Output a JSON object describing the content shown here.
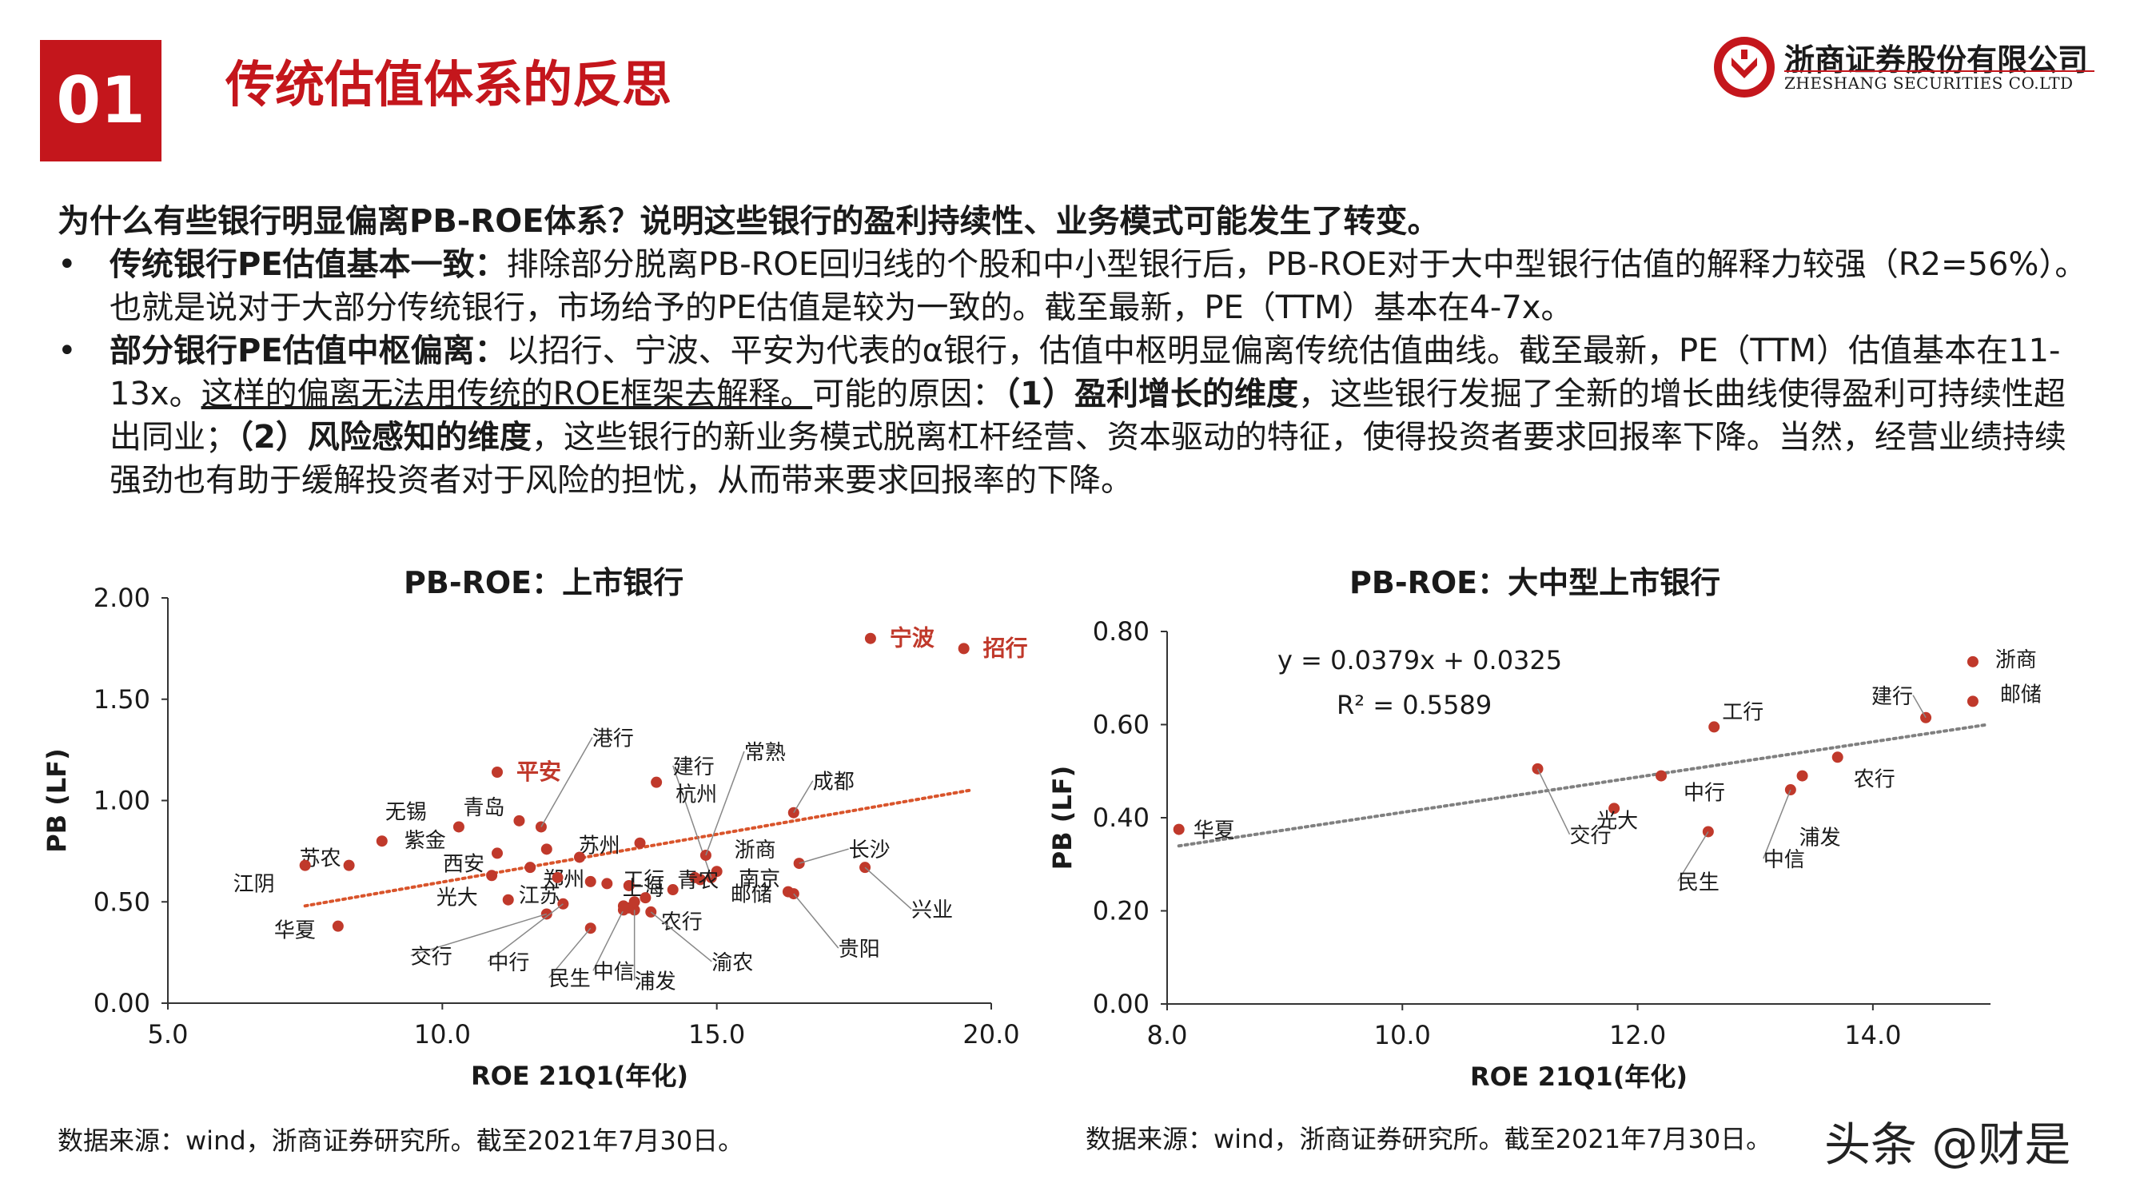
{
  "header": {
    "section_number": "01",
    "title": "传统估值体系的反思",
    "company_cn": "浙商证券股份有限公司",
    "company_en": "ZHESHANG SECURITIES CO.LTD",
    "brand_color": "#c4161c"
  },
  "body": {
    "question": "为什么有些银行明显偏离PB-ROE体系？说明这些银行的盈利持续性、业务模式可能发生了转变。",
    "bullet1_bold": "传统银行PE估值基本一致：",
    "bullet1_text": "排除部分脱离PB-ROE回归线的个股和中小型银行后，PB-ROE对于大中型银行估值的解释力较强（R2=56%）。也就是说对于大部分传统银行，市场给予的PE估值是较为一致的。截至最新，PE（TTM）基本在4-7x。",
    "bullet2_bold": "部分银行PE估值中枢偏离：",
    "bullet2_text1": "以招行、宁波、平安为代表的α银行，估值中枢明显偏离传统估值曲线。截至最新，PE（TTM）估值基本在11-13x。",
    "bullet2_underline": "这样的偏离无法用传统的ROE框架去解释。",
    "bullet2_text2": "可能的原因：",
    "bullet2_bold2": "（1）盈利增长的维度",
    "bullet2_text3": "，这些银行发掘了全新的增长曲线使得盈利可持续性超出同业；",
    "bullet2_bold3": "（2）风险感知的维度",
    "bullet2_text4": "，这些银行的新业务模式脱离杠杆经营、资本驱动的特征，使得投资者要求回报率下降。当然，经营业绩持续强劲也有助于缓解投资者对于风险的担忧，从而带来要求回报率的下降。"
  },
  "charts": {
    "left_source": "数据来源：wind，浙商证券研究所。截至2021年7月30日。",
    "right_source": "数据来源：wind，浙商证券研究所。截至2021年7月30日。"
  },
  "watermark": "头条 @财是",
  "chart_data": [
    {
      "type": "scatter",
      "title": "PB-ROE：上市银行",
      "xlabel": "ROE 21Q1(年化)",
      "ylabel": "PB (LF)",
      "xlim": [
        5.0,
        20.0
      ],
      "ylim": [
        0.0,
        2.0
      ],
      "xticks": [
        "5.0",
        "10.0",
        "15.0",
        "20.0"
      ],
      "yticks": [
        "0.00",
        "0.50",
        "1.00",
        "1.50",
        "2.00"
      ],
      "grid": false,
      "trendline": {
        "style": "dotted",
        "color": "#d9542b",
        "from": [
          7.5,
          0.48
        ],
        "to": [
          19.6,
          1.05
        ]
      },
      "point_color": "#c0392b",
      "highlight_color": "#c0392b",
      "points": [
        {
          "label": "宁波",
          "x": 17.8,
          "y": 1.8,
          "highlight": true
        },
        {
          "label": "招行",
          "x": 19.5,
          "y": 1.75,
          "highlight": true
        },
        {
          "label": "平安",
          "x": 11.0,
          "y": 1.14,
          "highlight": true
        },
        {
          "label": "港行",
          "x": 11.8,
          "y": 0.87
        },
        {
          "label": "建行",
          "x": 14.9,
          "y": 0.62
        },
        {
          "label": "常熟",
          "x": 14.8,
          "y": 0.73
        },
        {
          "label": "杭州",
          "x": 13.9,
          "y": 1.09
        },
        {
          "label": "成都",
          "x": 16.4,
          "y": 0.94
        },
        {
          "label": "长沙",
          "x": 16.5,
          "y": 0.69
        },
        {
          "label": "无锡",
          "x": 10.3,
          "y": 0.87
        },
        {
          "label": "青岛",
          "x": 11.4,
          "y": 0.9
        },
        {
          "label": "苏州",
          "x": 11.9,
          "y": 0.76
        },
        {
          "label": "苏农",
          "x": 8.3,
          "y": 0.68
        },
        {
          "label": "紫金",
          "x": 8.9,
          "y": 0.8
        },
        {
          "label": "江阴",
          "x": 7.5,
          "y": 0.68
        },
        {
          "label": "西安",
          "x": 11.0,
          "y": 0.74
        },
        {
          "label": "郑州",
          "x": 11.6,
          "y": 0.67
        },
        {
          "label": "浙商",
          "x": 15.0,
          "y": 0.65
        },
        {
          "label": "南京",
          "x": 14.7,
          "y": 0.61
        },
        {
          "label": "工行",
          "x": 13.0,
          "y": 0.59
        },
        {
          "label": "上海",
          "x": 13.4,
          "y": 0.58
        },
        {
          "label": "青农",
          "x": 14.6,
          "y": 0.62
        },
        {
          "label": "光大",
          "x": 11.2,
          "y": 0.51
        },
        {
          "label": "江苏",
          "x": 12.7,
          "y": 0.6
        },
        {
          "label": "邮储",
          "x": 16.3,
          "y": 0.55
        },
        {
          "label": "兴业",
          "x": 17.7,
          "y": 0.67
        },
        {
          "label": "华夏",
          "x": 8.1,
          "y": 0.38
        },
        {
          "label": "交行",
          "x": 11.9,
          "y": 0.44
        },
        {
          "label": "中行",
          "x": 12.2,
          "y": 0.49
        },
        {
          "label": "农行",
          "x": 13.4,
          "y": 0.47
        },
        {
          "label": "民生",
          "x": 12.7,
          "y": 0.37
        },
        {
          "label": "中信",
          "x": 13.3,
          "y": 0.46
        },
        {
          "label": "浦发",
          "x": 13.5,
          "y": 0.46
        },
        {
          "label": "渝农",
          "x": 13.8,
          "y": 0.45
        },
        {
          "label": "贵阳",
          "x": 16.4,
          "y": 0.54
        },
        {
          "label": "",
          "x": 13.5,
          "y": 0.5
        },
        {
          "label": "",
          "x": 13.7,
          "y": 0.52
        },
        {
          "label": "",
          "x": 13.3,
          "y": 0.48
        },
        {
          "label": "",
          "x": 14.2,
          "y": 0.56
        },
        {
          "label": "",
          "x": 12.5,
          "y": 0.72
        },
        {
          "label": "",
          "x": 13.6,
          "y": 0.79
        },
        {
          "label": "",
          "x": 10.9,
          "y": 0.63
        },
        {
          "label": "",
          "x": 12.1,
          "y": 0.62
        }
      ]
    },
    {
      "type": "scatter",
      "title": "PB-ROE：大中型上市银行",
      "xlabel": "ROE 21Q1(年化)",
      "ylabel": "PB (LF)",
      "xlim": [
        8.0,
        15.0
      ],
      "ylim": [
        0.0,
        0.8
      ],
      "xticks": [
        "8.0",
        "10.0",
        "12.0",
        "14.0"
      ],
      "yticks": [
        "0.00",
        "0.20",
        "0.40",
        "0.60",
        "0.80"
      ],
      "grid": false,
      "equation": "y = 0.0379x + 0.0325",
      "r_squared": "R² = 0.5589",
      "trendline": {
        "style": "dotted",
        "color": "#808080",
        "slope": 0.0379,
        "intercept": 0.0325,
        "from_x": 8.1,
        "to_x": 14.95
      },
      "point_color": "#c0392b",
      "points": [
        {
          "label": "华夏",
          "x": 8.1,
          "y": 0.375
        },
        {
          "label": "交行",
          "x": 11.15,
          "y": 0.505
        },
        {
          "label": "光大",
          "x": 11.8,
          "y": 0.42
        },
        {
          "label": "中行",
          "x": 12.2,
          "y": 0.49
        },
        {
          "label": "工行",
          "x": 12.65,
          "y": 0.595
        },
        {
          "label": "民生",
          "x": 12.6,
          "y": 0.37
        },
        {
          "label": "中信",
          "x": 13.3,
          "y": 0.46
        },
        {
          "label": "浦发",
          "x": 13.4,
          "y": 0.49
        },
        {
          "label": "农行",
          "x": 13.7,
          "y": 0.53
        },
        {
          "label": "建行",
          "x": 14.45,
          "y": 0.615
        },
        {
          "label": "浙商",
          "x": 14.85,
          "y": 0.735
        },
        {
          "label": "邮储",
          "x": 14.85,
          "y": 0.65
        }
      ]
    }
  ]
}
